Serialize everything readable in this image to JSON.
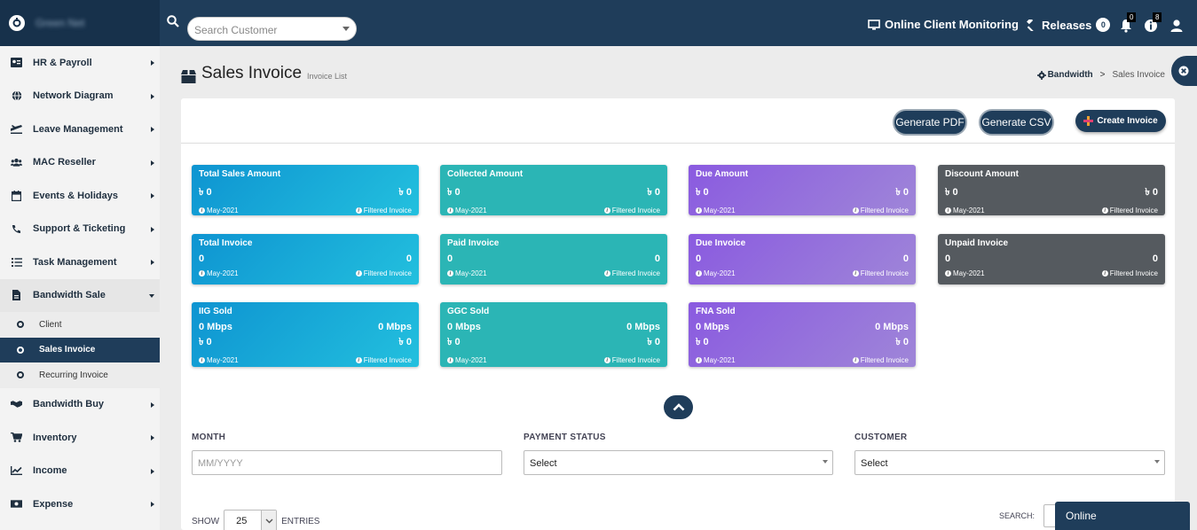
{
  "brand": {
    "name": "Green Net"
  },
  "search": {
    "placeholder": "Search Customer"
  },
  "top_nav": {
    "monitoring_label": "Online Client Monitoring",
    "releases_label": "Releases",
    "releases_count": "0",
    "bell_count": "0",
    "info_count": "8"
  },
  "sidebar": {
    "items": [
      {
        "label": "HR & Payroll",
        "icon": "id-card-icon"
      },
      {
        "label": "Network Diagram",
        "icon": "globe-icon"
      },
      {
        "label": "Leave Management",
        "icon": "plane-icon"
      },
      {
        "label": "MAC Reseller",
        "icon": "users-icon"
      },
      {
        "label": "Events & Holidays",
        "icon": "calendar-icon"
      },
      {
        "label": "Support & Ticketing",
        "icon": "phone-icon"
      },
      {
        "label": "Task Management",
        "icon": "list-icon"
      },
      {
        "label": "Bandwidth Sale",
        "icon": "file-icon"
      }
    ],
    "sub_items": [
      "Client",
      "Sales Invoice",
      "Recurring Invoice"
    ],
    "items_after": [
      {
        "label": "Bandwidth Buy",
        "icon": "handshake-icon"
      },
      {
        "label": "Inventory",
        "icon": "cart-icon"
      },
      {
        "label": "Income",
        "icon": "chart-icon"
      },
      {
        "label": "Expense",
        "icon": "money-icon"
      }
    ]
  },
  "page": {
    "title": "Sales Invoice",
    "subtitle": "Invoice List",
    "breadcrumb_first": "Bandwidth",
    "breadcrumb_sep": ">",
    "breadcrumb_last": "Sales Invoice"
  },
  "buttons": {
    "generate_pdf": "Generate PDF",
    "generate_csv": "Generate CSV",
    "create_invoice": "Create Invoice"
  },
  "stats": [
    {
      "title": "Total Sales Amount",
      "left": "৳ 0",
      "right": "৳ 0",
      "month": "May-2021",
      "filter": "Filtered Invoice",
      "color": "#0e94d1"
    },
    {
      "title": "Collected Amount",
      "left": "৳ 0",
      "right": "৳ 0",
      "month": "May-2021",
      "filter": "Filtered Invoice",
      "color": "#2bb5b5"
    },
    {
      "title": "Due Amount",
      "left": "৳ 0",
      "right": "৳ 0",
      "month": "May-2021",
      "filter": "Filtered Invoice",
      "color": "#8a5ae0"
    },
    {
      "title": "Discount Amount",
      "left": "৳ 0",
      "right": "৳ 0",
      "month": "May-2021",
      "filter": "Filtered Invoice",
      "color": "#555a5f"
    },
    {
      "title": "Total Invoice",
      "left": "0",
      "right": "0",
      "month": "May-2021",
      "filter": "Filtered Invoice",
      "color": "#0e94d1"
    },
    {
      "title": "Paid Invoice",
      "left": "0",
      "right": "0",
      "month": "May-2021",
      "filter": "Filtered Invoice",
      "color": "#2bb5b5"
    },
    {
      "title": "Due Invoice",
      "left": "0",
      "right": "0",
      "month": "May-2021",
      "filter": "Filtered Invoice",
      "color": "#8a5ae0"
    },
    {
      "title": "Unpaid Invoice",
      "left": "0",
      "right": "0",
      "month": "May-2021",
      "filter": "Filtered Invoice",
      "color": "#555a5f"
    },
    {
      "title": "IIG Sold",
      "left": "0 Mbps",
      "right": "0 Mbps",
      "left2": "৳ 0",
      "right2": "৳ 0",
      "month": "May-2021",
      "filter": "Filtered Invoice",
      "color": "#0e94d1"
    },
    {
      "title": "GGC Sold",
      "left": "0 Mbps",
      "right": "0 Mbps",
      "left2": "৳ 0",
      "right2": "৳ 0",
      "month": "May-2021",
      "filter": "Filtered Invoice",
      "color": "#2bb5b5"
    },
    {
      "title": "FNA Sold",
      "left": "0 Mbps",
      "right": "0 Mbps",
      "left2": "৳ 0",
      "right2": "৳ 0",
      "month": "May-2021",
      "filter": "Filtered Invoice",
      "color": "#8a5ae0"
    }
  ],
  "filters": {
    "month_label": "MONTH",
    "month_placeholder": "MM/YYYY",
    "payment_label": "PAYMENT STATUS",
    "payment_value": "Select",
    "customer_label": "CUSTOMER",
    "customer_value": "Select"
  },
  "table_controls": {
    "show_label": "SHOW",
    "entries_value": "25",
    "entries_label": "ENTRIES",
    "search_label": "SEARCH:"
  },
  "online_label": "Online"
}
